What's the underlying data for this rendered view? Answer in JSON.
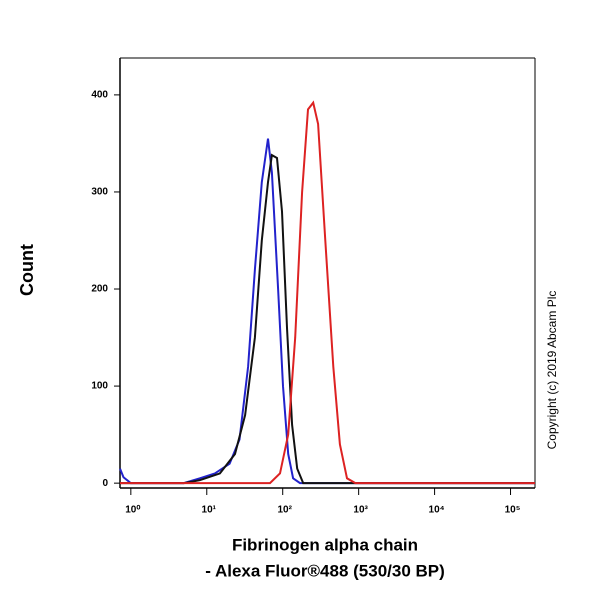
{
  "chart_data": {
    "type": "line",
    "xscale": "log",
    "xlabel": [
      "Fibrinogen alpha chain",
      "- Alexa Fluor®488 (530/30 BP)"
    ],
    "ylabel": "Count",
    "annotation": "Copyright (c) 2019 Abcam Plc",
    "xlim": [
      0.72,
      210000
    ],
    "ylim": [
      -5,
      438
    ],
    "xticks": [
      {
        "value": 1,
        "label": "10⁰"
      },
      {
        "value": 10,
        "label": "10¹"
      },
      {
        "value": 100,
        "label": "10²"
      },
      {
        "value": 1000,
        "label": "10³"
      },
      {
        "value": 10000,
        "label": "10⁴"
      },
      {
        "value": 100000,
        "label": "10⁵"
      }
    ],
    "yticks": [
      0,
      100,
      200,
      300,
      400
    ],
    "series": [
      {
        "color": "#2222cc",
        "x": [
          0.72,
          0.8,
          1,
          5,
          8.1,
          12.8,
          20,
          27,
          35,
          43,
          53,
          64,
          72,
          87,
          101,
          118,
          137,
          169,
          210000
        ],
        "values": [
          15,
          6,
          0,
          0,
          5,
          10,
          20,
          45,
          120,
          220,
          310,
          355,
          320,
          200,
          100,
          30,
          5,
          0,
          0
        ]
      },
      {
        "color": "#111111",
        "x": [
          0.72,
          5,
          8.1,
          14.9,
          23.5,
          32,
          43,
          53,
          64,
          72,
          84,
          98,
          114,
          133,
          155,
          186,
          210000
        ],
        "values": [
          0,
          0,
          3,
          10,
          30,
          70,
          150,
          250,
          310,
          338,
          335,
          280,
          160,
          60,
          15,
          0,
          0
        ]
      },
      {
        "color": "#dd2222",
        "x": [
          0.72,
          68,
          92,
          118,
          146,
          180,
          215,
          252,
          292,
          364,
          463,
          566,
          702,
          906,
          210000
        ],
        "values": [
          0,
          0,
          10,
          50,
          150,
          300,
          385,
          392,
          370,
          250,
          120,
          40,
          5,
          0,
          0
        ]
      }
    ]
  }
}
